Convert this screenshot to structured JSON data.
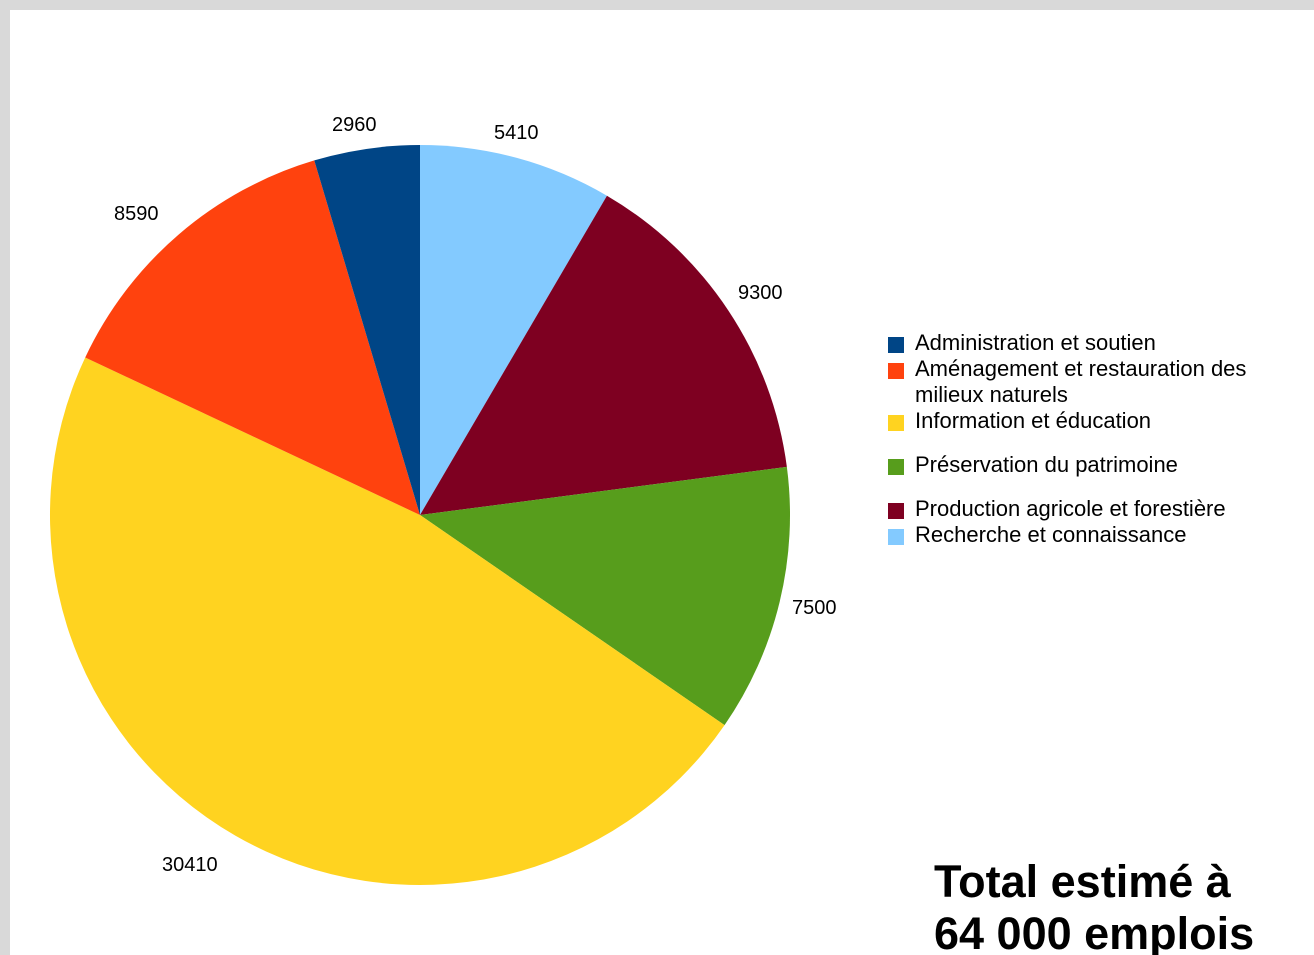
{
  "chart_data": {
    "type": "pie",
    "title": "",
    "start": "12 o'clock",
    "direction": "clockwise",
    "legend_position": "right",
    "slices": [
      {
        "name": "Recherche et connaissance",
        "value": 5410,
        "color": "#83caff"
      },
      {
        "name": "Production agricole et forestière",
        "value": 9300,
        "color": "#7e0021"
      },
      {
        "name": "Préservation du patrimoine",
        "value": 7500,
        "color": "#579d1c"
      },
      {
        "name": "Information et éducation",
        "value": 30410,
        "color": "#ffd320"
      },
      {
        "name": "Aménagement et restauration des milieux naturels",
        "value": 8590,
        "color": "#ff420e"
      },
      {
        "name": "Administration et soutien",
        "value": 2960,
        "color": "#004586"
      }
    ],
    "legend": [
      {
        "label": "Administration et soutien",
        "color": "#004586"
      },
      {
        "label": "Aménagement et restauration des milieux naturels",
        "color": "#ff420e"
      },
      {
        "label": "Information et éducation",
        "color": "#ffd320"
      },
      {
        "label": "Préservation du patrimoine",
        "color": "#579d1c"
      },
      {
        "label": "Production agricole et forestière",
        "color": "#7e0021"
      },
      {
        "label": "Recherche et connaissance",
        "color": "#83caff"
      }
    ],
    "data_labels": [
      "5410",
      "9300",
      "7500",
      "30410",
      "8590",
      "2960"
    ],
    "annotation": "Total estimé à 64 000 emplois"
  },
  "annotation": {
    "line1": "Total estimé à",
    "line2": "64 000 emplois"
  }
}
